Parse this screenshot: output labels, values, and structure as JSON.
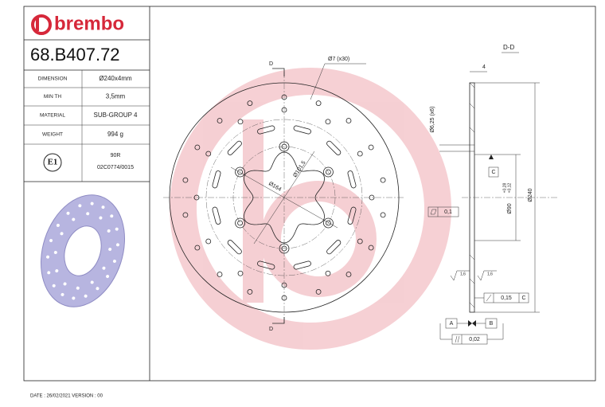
{
  "header": {
    "brand": "brembo",
    "part_number": "68.B407.72"
  },
  "specs": {
    "rows": [
      [
        "DIMENSION",
        "Ø240x4mm"
      ],
      [
        "MIN TH",
        "3,5mm"
      ],
      [
        "MATERIAL",
        "SUB-GROUP 4"
      ],
      [
        "WEIGHT",
        "994 g"
      ]
    ],
    "homologation": {
      "mark": "E1",
      "code": "90R",
      "number": "02C0774/0015"
    }
  },
  "drawing": {
    "section_marks": [
      "D",
      "D"
    ],
    "holes": "Ø7 (x30)",
    "outer_pcd": "Ø164",
    "inner_pcd": "Ø101,5",
    "section_title": "D-D",
    "thickness": "4",
    "bolt_holes": "Ø6,25 (x6)",
    "datum_c": "C",
    "bore": "Ø90",
    "bore_tol_upper": "+0,28",
    "bore_tol_lower": "+0,12",
    "diameter": "Ø240",
    "flatness": "0,1",
    "roughness": [
      "1,6",
      "1,6"
    ],
    "runout": "0,15",
    "runout_datum": "C",
    "datum_a": "A",
    "datum_b": "B",
    "parallelism": "0,02"
  },
  "footer": {
    "date_line": "DATE : 26/02/2021 VERSION : 00"
  }
}
